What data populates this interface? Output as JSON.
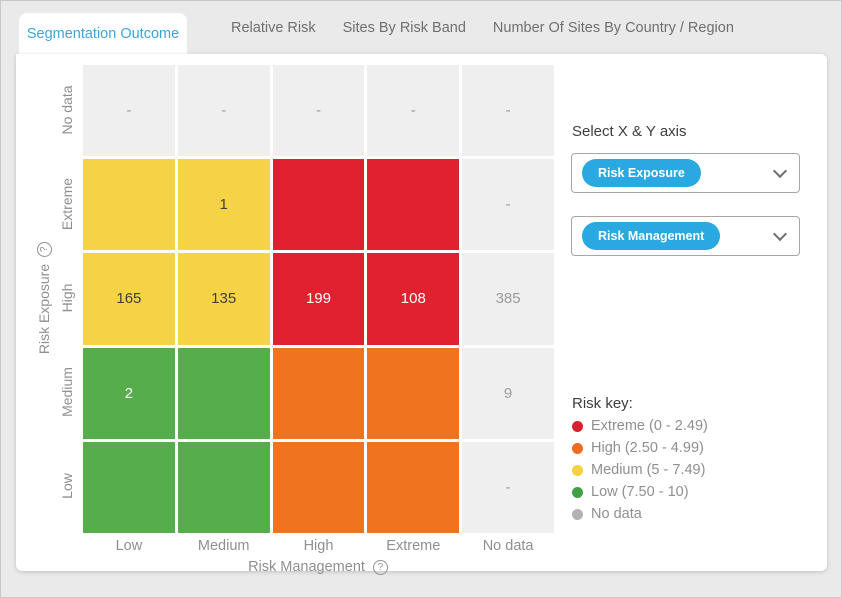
{
  "tabs": [
    {
      "label": "Segmentation Outcome",
      "active": true
    },
    {
      "label": "Relative Risk",
      "active": false
    },
    {
      "label": "Sites By Risk Band",
      "active": false
    },
    {
      "label": "Number Of Sites By Country / Region",
      "active": false
    }
  ],
  "controls": {
    "heading": "Select X & Y axis",
    "dropdowns": [
      {
        "value": "Risk Exposure"
      },
      {
        "value": "Risk Management"
      }
    ]
  },
  "heatmap": {
    "y_axis_title": "Risk Exposure",
    "x_axis_title": "Risk Management",
    "row_labels": [
      "No data",
      "Extreme",
      "High",
      "Medium",
      "Low"
    ],
    "col_labels": [
      "Low",
      "Medium",
      "High",
      "Extreme",
      "No data"
    ],
    "cells": [
      [
        {
          "text": "-",
          "band": "nodata"
        },
        {
          "text": "-",
          "band": "nodata"
        },
        {
          "text": "-",
          "band": "nodata"
        },
        {
          "text": "-",
          "band": "nodata"
        },
        {
          "text": "-",
          "band": "nodata"
        }
      ],
      [
        {
          "text": "",
          "band": "medium"
        },
        {
          "text": "1",
          "band": "medium"
        },
        {
          "text": "",
          "band": "extreme"
        },
        {
          "text": "",
          "band": "extreme"
        },
        {
          "text": "-",
          "band": "nodata"
        }
      ],
      [
        {
          "text": "165",
          "band": "medium"
        },
        {
          "text": "135",
          "band": "medium"
        },
        {
          "text": "199",
          "band": "extreme"
        },
        {
          "text": "108",
          "band": "extreme"
        },
        {
          "text": "385",
          "band": "nodata"
        }
      ],
      [
        {
          "text": "2",
          "band": "low"
        },
        {
          "text": "",
          "band": "low"
        },
        {
          "text": "",
          "band": "high"
        },
        {
          "text": "",
          "band": "high"
        },
        {
          "text": "9",
          "band": "nodata"
        }
      ],
      [
        {
          "text": "",
          "band": "low"
        },
        {
          "text": "",
          "band": "low"
        },
        {
          "text": "",
          "band": "high"
        },
        {
          "text": "",
          "band": "high"
        },
        {
          "text": "-",
          "band": "nodata"
        }
      ]
    ]
  },
  "band_colors": {
    "extreme": "#e0212f",
    "high": "#f0731f",
    "medium": "#f6d245",
    "low": "#55ae4b",
    "nodata": "#efefef"
  },
  "legend": {
    "title": "Risk key:",
    "items": [
      {
        "label": "Extreme (0 - 2.49)",
        "color": "#d9202f"
      },
      {
        "label": "High (2.50 - 4.99)",
        "color": "#ef6b22"
      },
      {
        "label": "Medium (5 - 7.49)",
        "color": "#f5d040"
      },
      {
        "label": "Low (7.50 - 10)",
        "color": "#3fa045"
      },
      {
        "label": "No data",
        "color": "#b3b3b3"
      }
    ]
  },
  "icons": {
    "help_glyph": "?"
  },
  "chart_data": {
    "type": "heatmap",
    "title": "Segmentation Outcome",
    "xlabel": "Risk Management",
    "ylabel": "Risk Exposure",
    "x_categories": [
      "Low",
      "Medium",
      "High",
      "Extreme",
      "No data"
    ],
    "y_categories_top_to_bottom": [
      "No data",
      "Extreme",
      "High",
      "Medium",
      "Low"
    ],
    "values": [
      [
        null,
        null,
        null,
        null,
        null
      ],
      [
        null,
        1,
        null,
        null,
        null
      ],
      [
        165,
        135,
        199,
        108,
        385
      ],
      [
        2,
        null,
        null,
        null,
        9
      ],
      [
        null,
        null,
        null,
        null,
        null
      ]
    ],
    "cell_risk_bands": [
      [
        "nodata",
        "nodata",
        "nodata",
        "nodata",
        "nodata"
      ],
      [
        "medium",
        "medium",
        "extreme",
        "extreme",
        "nodata"
      ],
      [
        "medium",
        "medium",
        "extreme",
        "extreme",
        "nodata"
      ],
      [
        "low",
        "low",
        "high",
        "high",
        "nodata"
      ],
      [
        "low",
        "low",
        "high",
        "high",
        "nodata"
      ]
    ],
    "legend_entries": [
      "Extreme (0 - 2.49)",
      "High (2.50 - 4.99)",
      "Medium (5 - 7.49)",
      "Low (7.50 - 10)",
      "No data"
    ],
    "legend_position": "right",
    "grid": false
  }
}
